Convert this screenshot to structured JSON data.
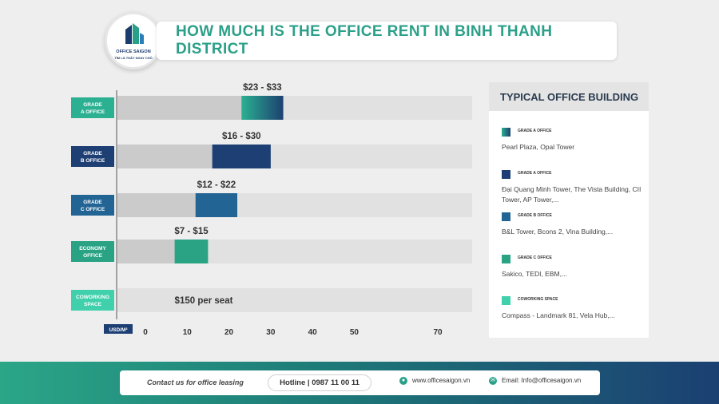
{
  "header": {
    "title": "HOW MUCH IS THE OFFICE RENT IN BINH THANH DISTRICT",
    "logo_line1": "OFFICE SAIGON",
    "logo_line2": "TÌM LÀ THẤY NGAY CHỖ"
  },
  "colors": {
    "grade_a": "#2bb092",
    "grade_a_end": "#1d4070",
    "grade_b": "#1d3f73",
    "grade_c": "#226494",
    "economy": "#2aa385",
    "coworking": "#40d0ac",
    "base": "#cbcbcb",
    "row_bg": "#e1e1e1"
  },
  "chart_data": {
    "type": "bar",
    "orientation": "horizontal",
    "xlabel": "USD/M²",
    "xlim": [
      0,
      75
    ],
    "xticks": [
      0,
      10,
      20,
      30,
      40,
      50,
      70
    ],
    "categories": [
      "GRADE A OFFICE",
      "GRADE B OFFICE",
      "GRADE C OFFICE",
      "ECONOMY OFFICE",
      "COWORKING SPACE"
    ],
    "bars": [
      {
        "category": "GRADE A OFFICE",
        "min": 23,
        "max": 33,
        "label": "$23 - $33",
        "color_key": "grade_a"
      },
      {
        "category": "GRADE B OFFICE",
        "min": 16,
        "max": 30,
        "label": "$16 - $30",
        "color_key": "grade_b"
      },
      {
        "category": "GRADE C OFFICE",
        "min": 12,
        "max": 22,
        "label": "$12 - $22",
        "color_key": "grade_c"
      },
      {
        "category": "ECONOMY OFFICE",
        "min": 7,
        "max": 15,
        "label": "$7 - $15",
        "color_key": "economy"
      },
      {
        "category": "COWORKING SPACE",
        "min": null,
        "max": null,
        "label": "$150 per seat",
        "color_key": "coworking"
      }
    ]
  },
  "side_panel": {
    "title": "TYPICAL OFFICE BUILDING",
    "items": [
      {
        "label": "GRADE A OFFICE",
        "desc": "Pearl Plaza, Opal Tower",
        "color": "#2bb092"
      },
      {
        "label": "GRADE A OFFICE",
        "desc": "Đại Quang Minh Tower, The Vista Building, CII Tower, AP Tower,...",
        "color": "#1d3f73"
      },
      {
        "label": "GRADE B OFFICE",
        "desc": "B&L Tower, Bcons 2, Vina Building,...",
        "color": "#226494"
      },
      {
        "label": "GRADE C OFFICE",
        "desc": "Sakico, TEDI, EBM,...",
        "color": "#2aa385"
      },
      {
        "label": "COWORKING SPACE",
        "desc": "Compass - Landmark 81, Vela Hub,...",
        "color": "#40d0ac"
      }
    ]
  },
  "footer": {
    "contact": "Contact us for office leasing",
    "hotline": "Hotline | 0987 11 00 11",
    "website": "www.officesaigon.vn",
    "email": "Email: Info@officesaigon.vn"
  }
}
